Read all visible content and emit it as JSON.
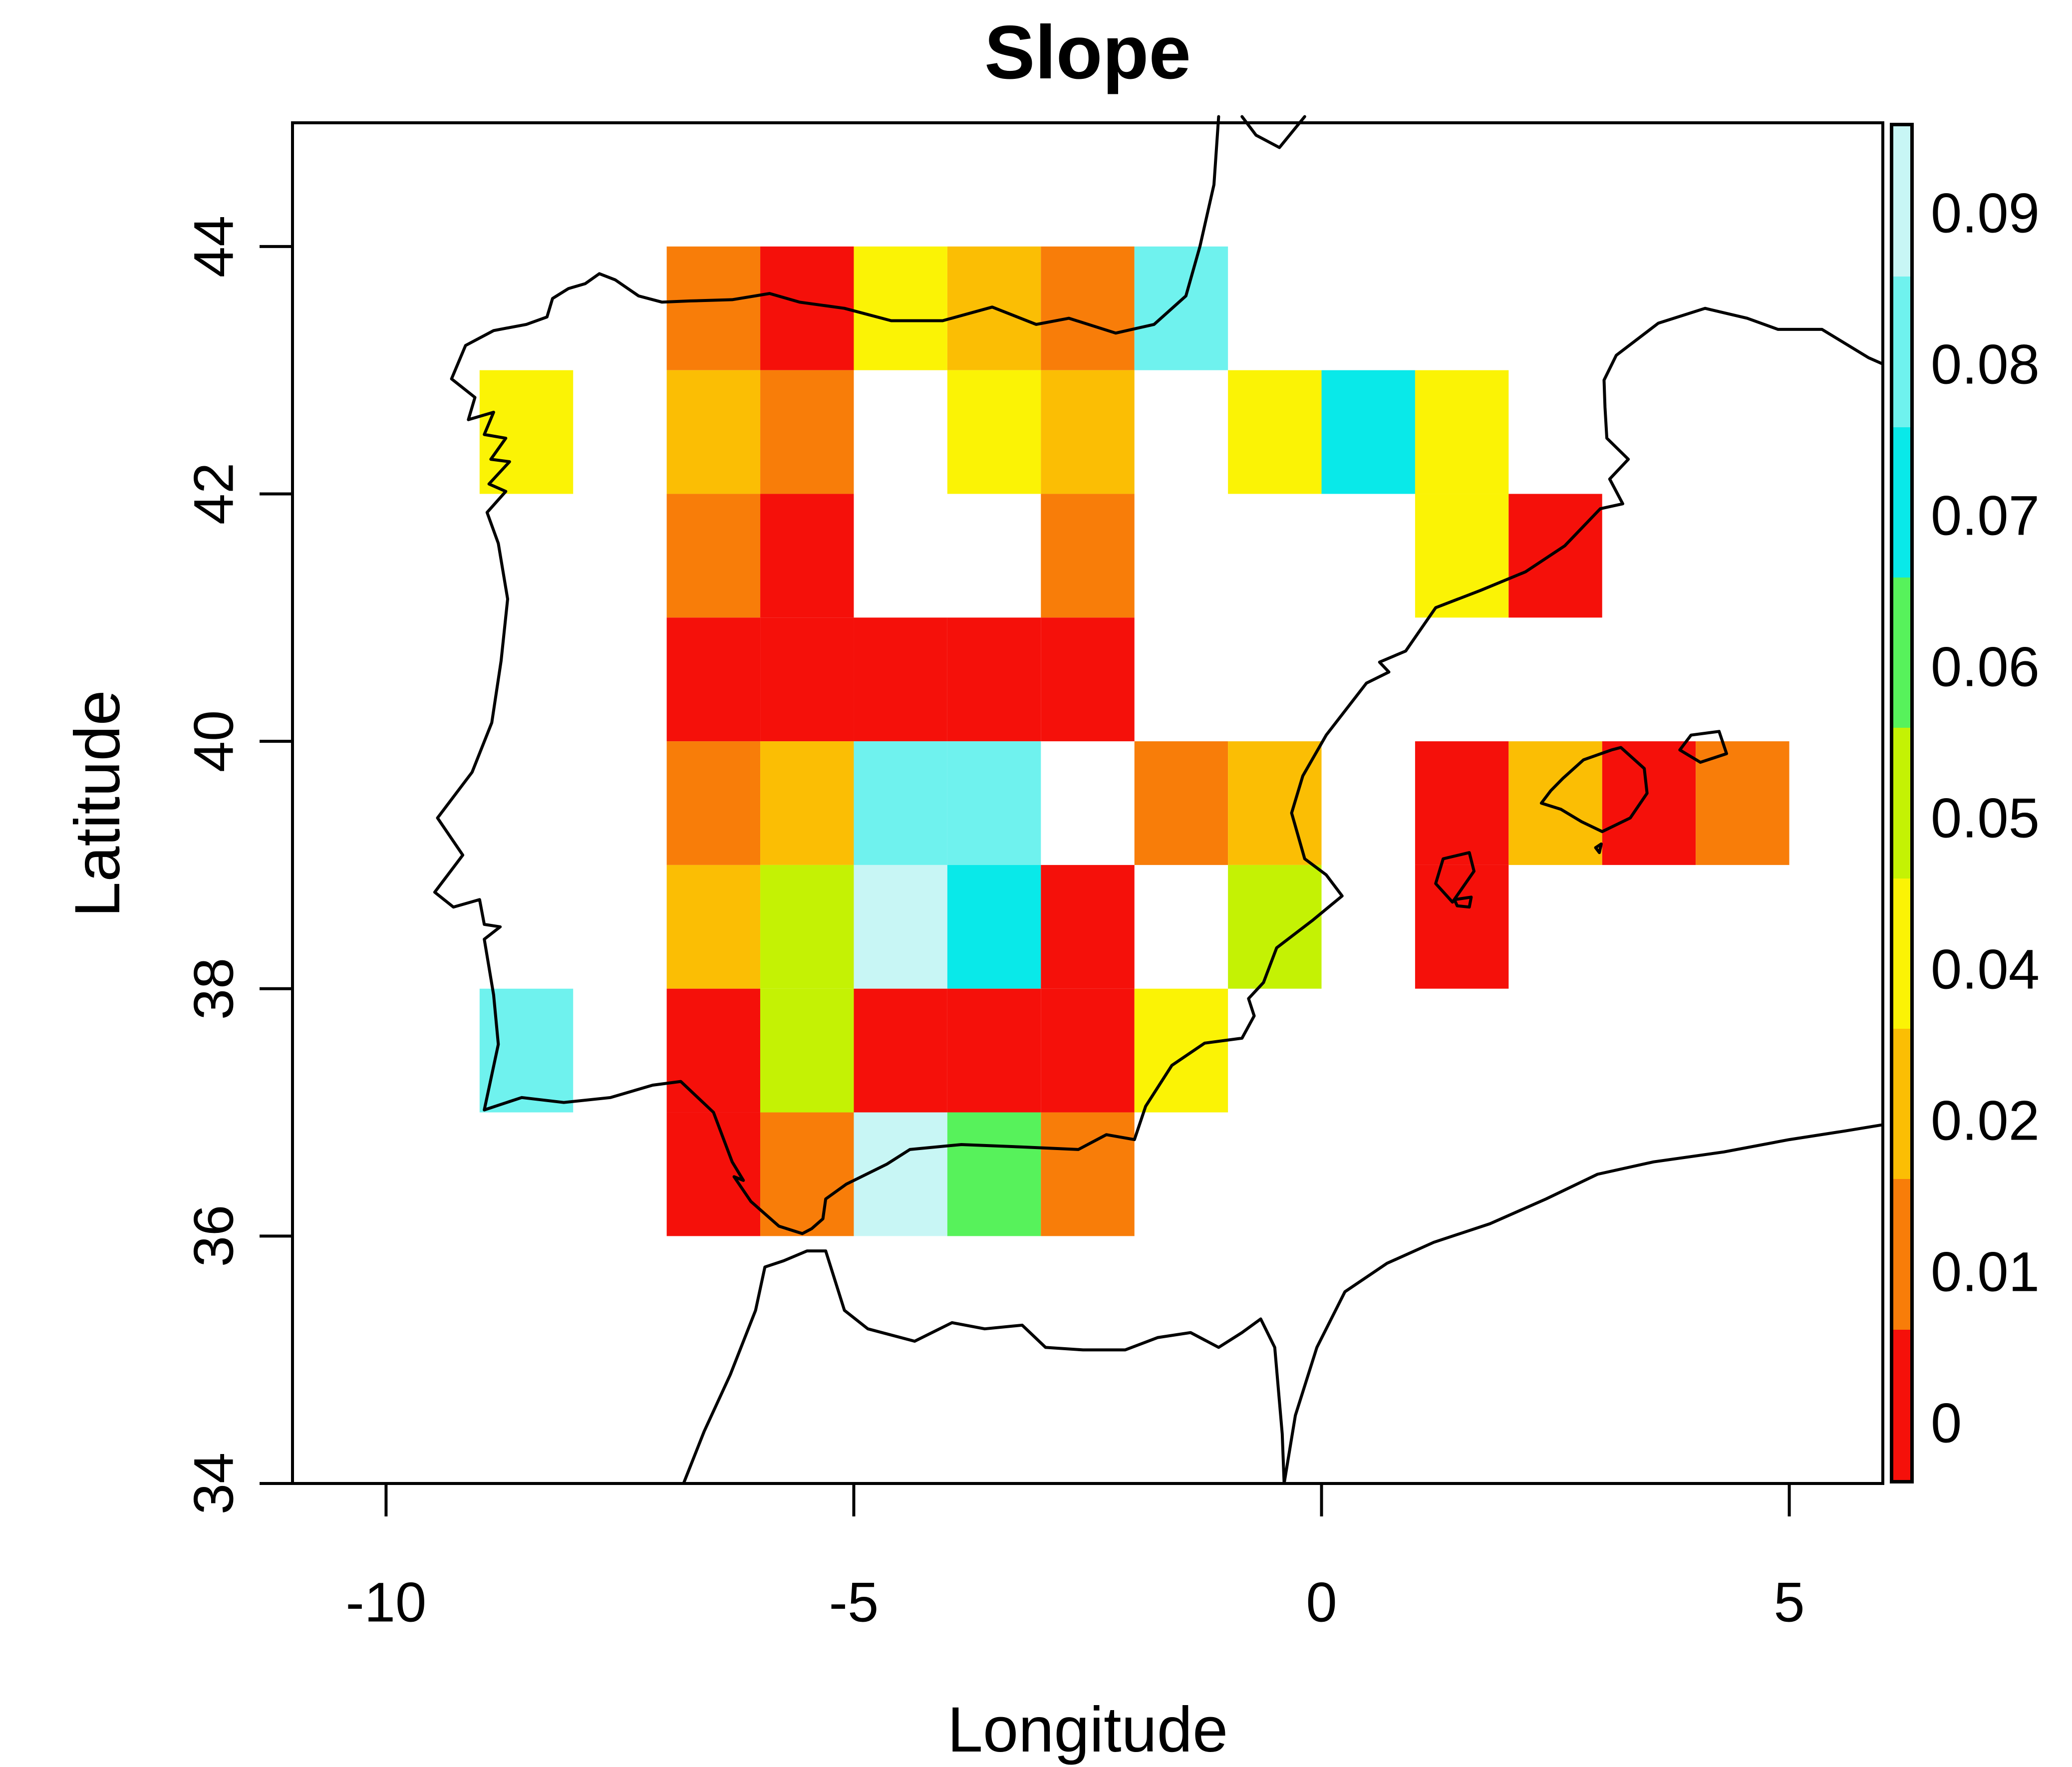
{
  "figure": {
    "title": "Slope",
    "xlabel": "Longitude",
    "ylabel": "Latitude"
  },
  "chart_data": {
    "type": "heatmap",
    "title": "Slope",
    "xlabel": "Longitude",
    "ylabel": "Latitude",
    "grid": false,
    "legend_position": "right",
    "x_axis": {
      "range": [
        -11,
        6
      ],
      "tick_values": [
        -10,
        -5,
        0,
        5
      ],
      "tick_labels": [
        "-10",
        "-5",
        "0",
        "5"
      ]
    },
    "y_axis": {
      "range": [
        34,
        45
      ],
      "tick_values": [
        34,
        36,
        38,
        40,
        42,
        44
      ],
      "tick_labels": [
        "34",
        "36",
        "38",
        "40",
        "42",
        "44"
      ]
    },
    "cell_size_deg": 1,
    "palette": {
      "red": "#F5100A",
      "orange": "#F87D09",
      "amber": "#FBBE04",
      "yellow": "#FBF305",
      "chartreuse": "#C4F204",
      "green": "#57F25B",
      "cyan": "#09E9E9",
      "lightcyan": "#6FF2EE",
      "palecyan": "#C8F6F5"
    },
    "colorbar": {
      "segments_top_to_bottom": [
        "palecyan",
        "lightcyan",
        "cyan",
        "green",
        "chartreuse",
        "yellow",
        "amber",
        "orange",
        "red"
      ],
      "labels_top_to_bottom": [
        "0.09",
        "0.08",
        "0.07",
        "0.06",
        "0.05",
        "0.04",
        "0.02",
        "0.01",
        "0"
      ]
    },
    "cells": [
      {
        "lon": -7,
        "lat": 43,
        "color": "orange"
      },
      {
        "lon": -6,
        "lat": 43,
        "color": "red"
      },
      {
        "lon": -5,
        "lat": 43,
        "color": "yellow"
      },
      {
        "lon": -4,
        "lat": 43,
        "color": "amber"
      },
      {
        "lon": -3,
        "lat": 43,
        "color": "orange"
      },
      {
        "lon": -2,
        "lat": 43,
        "color": "lightcyan"
      },
      {
        "lon": -9,
        "lat": 42,
        "color": "yellow"
      },
      {
        "lon": -7,
        "lat": 42,
        "color": "amber"
      },
      {
        "lon": -6,
        "lat": 42,
        "color": "orange"
      },
      {
        "lon": -4,
        "lat": 42,
        "color": "yellow"
      },
      {
        "lon": -3,
        "lat": 42,
        "color": "amber"
      },
      {
        "lon": -1,
        "lat": 42,
        "color": "yellow"
      },
      {
        "lon": 0,
        "lat": 42,
        "color": "cyan"
      },
      {
        "lon": 1,
        "lat": 42,
        "color": "yellow"
      },
      {
        "lon": -7,
        "lat": 41,
        "color": "orange"
      },
      {
        "lon": -6,
        "lat": 41,
        "color": "red"
      },
      {
        "lon": -3,
        "lat": 41,
        "color": "orange"
      },
      {
        "lon": 1,
        "lat": 41,
        "color": "yellow"
      },
      {
        "lon": 2,
        "lat": 41,
        "color": "red"
      },
      {
        "lon": -7,
        "lat": 40,
        "color": "red"
      },
      {
        "lon": -6,
        "lat": 40,
        "color": "red"
      },
      {
        "lon": -5,
        "lat": 40,
        "color": "red"
      },
      {
        "lon": -4,
        "lat": 40,
        "color": "red"
      },
      {
        "lon": -3,
        "lat": 40,
        "color": "red"
      },
      {
        "lon": -7,
        "lat": 39,
        "color": "orange"
      },
      {
        "lon": -6,
        "lat": 39,
        "color": "amber"
      },
      {
        "lon": -5,
        "lat": 39,
        "color": "lightcyan"
      },
      {
        "lon": -4,
        "lat": 39,
        "color": "lightcyan"
      },
      {
        "lon": -2,
        "lat": 39,
        "color": "orange"
      },
      {
        "lon": -1,
        "lat": 39,
        "color": "amber"
      },
      {
        "lon": 1,
        "lat": 39,
        "color": "red"
      },
      {
        "lon": 2,
        "lat": 39,
        "color": "amber"
      },
      {
        "lon": 3,
        "lat": 39,
        "color": "red"
      },
      {
        "lon": 4,
        "lat": 39,
        "color": "orange"
      },
      {
        "lon": -7,
        "lat": 38,
        "color": "amber"
      },
      {
        "lon": -6,
        "lat": 38,
        "color": "chartreuse"
      },
      {
        "lon": -5,
        "lat": 38,
        "color": "palecyan"
      },
      {
        "lon": -4,
        "lat": 38,
        "color": "cyan"
      },
      {
        "lon": -3,
        "lat": 38,
        "color": "red"
      },
      {
        "lon": -1,
        "lat": 38,
        "color": "chartreuse"
      },
      {
        "lon": 1,
        "lat": 38,
        "color": "red"
      },
      {
        "lon": -9,
        "lat": 37,
        "color": "lightcyan"
      },
      {
        "lon": -7,
        "lat": 37,
        "color": "red"
      },
      {
        "lon": -6,
        "lat": 37,
        "color": "chartreuse"
      },
      {
        "lon": -5,
        "lat": 37,
        "color": "red"
      },
      {
        "lon": -4,
        "lat": 37,
        "color": "red"
      },
      {
        "lon": -3,
        "lat": 37,
        "color": "red"
      },
      {
        "lon": -2,
        "lat": 37,
        "color": "yellow"
      },
      {
        "lon": -7,
        "lat": 36,
        "color": "red"
      },
      {
        "lon": -6,
        "lat": 36,
        "color": "orange"
      },
      {
        "lon": -5,
        "lat": 36,
        "color": "palecyan"
      },
      {
        "lon": -4,
        "lat": 36,
        "color": "green"
      },
      {
        "lon": -3,
        "lat": 36,
        "color": "orange"
      }
    ],
    "coastlines": {
      "europe": [
        [
          -1.1,
          45.05
        ],
        [
          -1.15,
          44.5
        ],
        [
          -1.3,
          44.0
        ],
        [
          -1.45,
          43.6
        ],
        [
          -1.79,
          43.37
        ],
        [
          -2.2,
          43.3
        ],
        [
          -2.7,
          43.42
        ],
        [
          -3.05,
          43.37
        ],
        [
          -3.52,
          43.51
        ],
        [
          -4.05,
          43.4
        ],
        [
          -4.6,
          43.4
        ],
        [
          -5.1,
          43.5
        ],
        [
          -5.58,
          43.55
        ],
        [
          -5.9,
          43.62
        ],
        [
          -6.3,
          43.57
        ],
        [
          -6.75,
          43.56
        ],
        [
          -7.05,
          43.55
        ],
        [
          -7.3,
          43.6
        ],
        [
          -7.55,
          43.73
        ],
        [
          -7.72,
          43.78
        ],
        [
          -7.87,
          43.7
        ],
        [
          -8.05,
          43.66
        ],
        [
          -8.22,
          43.58
        ],
        [
          -8.28,
          43.43
        ],
        [
          -8.5,
          43.37
        ],
        [
          -8.85,
          43.32
        ],
        [
          -9.15,
          43.2
        ],
        [
          -9.3,
          42.93
        ],
        [
          -9.05,
          42.78
        ],
        [
          -9.12,
          42.6
        ],
        [
          -8.85,
          42.66
        ],
        [
          -8.95,
          42.48
        ],
        [
          -8.72,
          42.45
        ],
        [
          -8.88,
          42.28
        ],
        [
          -8.68,
          42.26
        ],
        [
          -8.9,
          42.08
        ],
        [
          -8.72,
          42.02
        ],
        [
          -8.92,
          41.85
        ],
        [
          -8.8,
          41.6
        ],
        [
          -8.7,
          41.15
        ],
        [
          -8.77,
          40.65
        ],
        [
          -8.87,
          40.15
        ],
        [
          -9.08,
          39.75
        ],
        [
          -9.45,
          39.38
        ],
        [
          -9.18,
          39.08
        ],
        [
          -9.48,
          38.78
        ],
        [
          -9.28,
          38.66
        ],
        [
          -9.0,
          38.72
        ],
        [
          -8.95,
          38.52
        ],
        [
          -8.78,
          38.5
        ],
        [
          -8.95,
          38.4
        ],
        [
          -8.85,
          37.95
        ],
        [
          -8.8,
          37.55
        ],
        [
          -8.95,
          37.02
        ],
        [
          -8.55,
          37.12
        ],
        [
          -8.1,
          37.08
        ],
        [
          -7.6,
          37.12
        ],
        [
          -7.15,
          37.22
        ],
        [
          -6.85,
          37.25
        ],
        [
          -6.5,
          37.0
        ],
        [
          -6.3,
          36.6
        ],
        [
          -6.18,
          36.45
        ],
        [
          -6.28,
          36.48
        ],
        [
          -6.1,
          36.28
        ],
        [
          -5.8,
          36.08
        ],
        [
          -5.55,
          36.02
        ],
        [
          -5.45,
          36.06
        ],
        [
          -5.33,
          36.14
        ],
        [
          -5.3,
          36.3
        ],
        [
          -5.08,
          36.42
        ],
        [
          -4.65,
          36.58
        ],
        [
          -4.4,
          36.7
        ],
        [
          -3.85,
          36.74
        ],
        [
          -3.2,
          36.72
        ],
        [
          -2.6,
          36.7
        ],
        [
          -2.3,
          36.82
        ],
        [
          -2.0,
          36.78
        ],
        [
          -1.88,
          37.05
        ],
        [
          -1.6,
          37.38
        ],
        [
          -1.25,
          37.56
        ],
        [
          -0.85,
          37.6
        ],
        [
          -0.72,
          37.78
        ],
        [
          -0.78,
          37.92
        ],
        [
          -0.62,
          38.05
        ],
        [
          -0.48,
          38.33
        ],
        [
          -0.1,
          38.55
        ],
        [
          0.22,
          38.75
        ],
        [
          0.05,
          38.92
        ],
        [
          -0.18,
          39.05
        ],
        [
          -0.32,
          39.42
        ],
        [
          -0.2,
          39.72
        ],
        [
          0.05,
          40.05
        ],
        [
          0.48,
          40.47
        ],
        [
          0.72,
          40.56
        ],
        [
          0.62,
          40.64
        ],
        [
          0.9,
          40.73
        ],
        [
          1.22,
          41.08
        ],
        [
          1.7,
          41.22
        ],
        [
          2.18,
          41.37
        ],
        [
          2.6,
          41.58
        ],
        [
          2.98,
          41.88
        ],
        [
          3.22,
          41.92
        ],
        [
          3.08,
          42.12
        ],
        [
          3.28,
          42.28
        ],
        [
          3.05,
          42.45
        ],
        [
          3.03,
          42.7
        ],
        [
          3.02,
          42.92
        ],
        [
          3.15,
          43.12
        ],
        [
          3.6,
          43.38
        ],
        [
          4.1,
          43.5
        ],
        [
          4.55,
          43.42
        ],
        [
          4.88,
          43.33
        ],
        [
          5.35,
          43.33
        ],
        [
          5.85,
          43.1
        ],
        [
          6.0,
          43.05
        ]
      ],
      "gironde_estuary": [
        [
          -0.18,
          45.05
        ],
        [
          -0.45,
          44.8
        ],
        [
          -0.7,
          44.9
        ],
        [
          -0.85,
          45.05
        ]
      ],
      "africa": [
        [
          -6.82,
          34.0
        ],
        [
          -6.6,
          34.42
        ],
        [
          -6.32,
          34.88
        ],
        [
          -6.05,
          35.4
        ],
        [
          -5.95,
          35.75
        ],
        [
          -5.75,
          35.8
        ],
        [
          -5.5,
          35.88
        ],
        [
          -5.3,
          35.88
        ],
        [
          -5.1,
          35.4
        ],
        [
          -4.85,
          35.25
        ],
        [
          -4.35,
          35.15
        ],
        [
          -3.95,
          35.3
        ],
        [
          -3.6,
          35.25
        ],
        [
          -3.2,
          35.28
        ],
        [
          -2.95,
          35.1
        ],
        [
          -2.55,
          35.08
        ],
        [
          -2.1,
          35.08
        ],
        [
          -1.75,
          35.18
        ],
        [
          -1.4,
          35.22
        ],
        [
          -1.1,
          35.1
        ],
        [
          -0.85,
          35.22
        ],
        [
          -0.65,
          35.33
        ],
        [
          -0.5,
          35.1
        ],
        [
          -0.42,
          34.4
        ],
        [
          -0.4,
          34.0
        ],
        [
          -0.28,
          34.55
        ],
        [
          -0.05,
          35.1
        ],
        [
          0.25,
          35.55
        ],
        [
          0.7,
          35.78
        ],
        [
          1.2,
          35.95
        ],
        [
          1.8,
          36.1
        ],
        [
          2.4,
          36.3
        ],
        [
          2.95,
          36.5
        ],
        [
          3.55,
          36.6
        ],
        [
          4.3,
          36.68
        ],
        [
          5.0,
          36.78
        ],
        [
          5.6,
          36.85
        ],
        [
          6.0,
          36.9
        ]
      ],
      "mallorca": [
        [
          2.35,
          39.5
        ],
        [
          2.45,
          39.6
        ],
        [
          2.58,
          39.7
        ],
        [
          2.8,
          39.85
        ],
        [
          3.1,
          39.93
        ],
        [
          3.2,
          39.95
        ],
        [
          3.45,
          39.78
        ],
        [
          3.48,
          39.58
        ],
        [
          3.3,
          39.38
        ],
        [
          3.0,
          39.27
        ],
        [
          2.78,
          39.35
        ],
        [
          2.56,
          39.45
        ],
        [
          2.35,
          39.5
        ]
      ],
      "menorca": [
        [
          3.83,
          39.93
        ],
        [
          3.95,
          40.05
        ],
        [
          4.25,
          40.08
        ],
        [
          4.33,
          39.9
        ],
        [
          4.05,
          39.83
        ],
        [
          3.83,
          39.93
        ]
      ],
      "ibiza": [
        [
          1.22,
          38.85
        ],
        [
          1.3,
          39.05
        ],
        [
          1.58,
          39.1
        ],
        [
          1.63,
          38.95
        ],
        [
          1.4,
          38.7
        ],
        [
          1.22,
          38.85
        ]
      ],
      "formentera": [
        [
          1.42,
          38.72
        ],
        [
          1.6,
          38.74
        ],
        [
          1.58,
          38.66
        ],
        [
          1.45,
          38.67
        ],
        [
          1.42,
          38.72
        ]
      ],
      "cabrera": [
        [
          2.93,
          39.14
        ],
        [
          2.99,
          39.17
        ],
        [
          2.97,
          39.1
        ],
        [
          2.93,
          39.14
        ]
      ]
    }
  }
}
